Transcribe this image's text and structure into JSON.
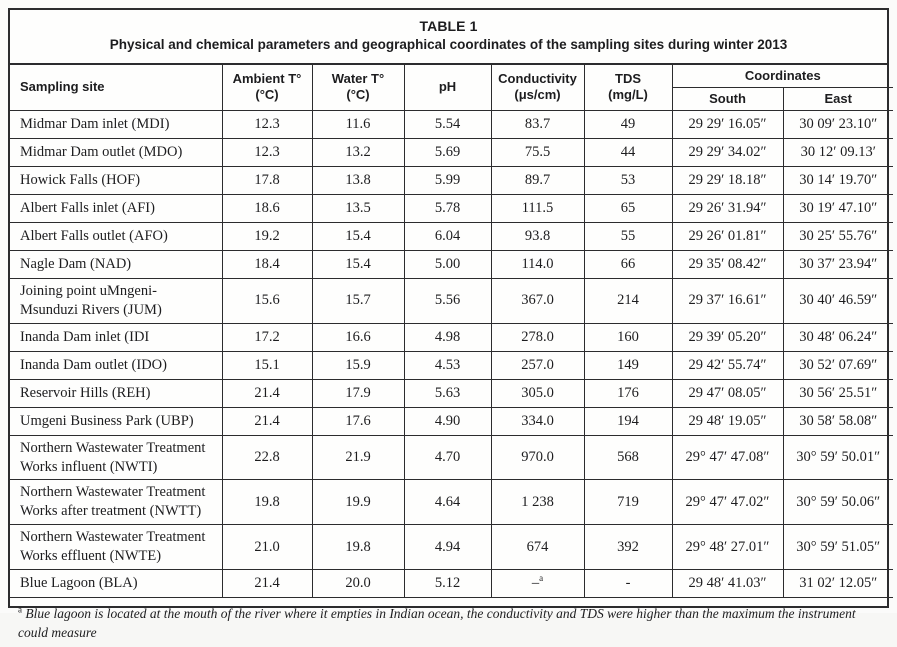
{
  "title": {
    "label": "TABLE 1",
    "subtitle": "Physical and chemical parameters and geographical coordinates of the sampling sites during winter 2013"
  },
  "table": {
    "headers": {
      "site": "Sampling site",
      "ambient": "Ambient T°",
      "ambient_unit": "(°C)",
      "water": "Water T°",
      "water_unit": "(°C)",
      "ph": "pH",
      "conductivity": "Conductivity",
      "conductivity_unit": "(μs/cm)",
      "tds": "TDS",
      "tds_unit": "(mg/L)",
      "coordinates": "Coordinates",
      "south": "South",
      "east": "East"
    },
    "rows": [
      {
        "site": "Midmar Dam inlet (MDI)",
        "ambient": "12.3",
        "water": "11.6",
        "ph": "5.54",
        "conductivity": "83.7",
        "tds": "49",
        "south": "29 29′ 16.05″",
        "east": "30 09′ 23.10″"
      },
      {
        "site": "Midmar Dam outlet (MDO)",
        "ambient": "12.3",
        "water": "13.2",
        "ph": "5.69",
        "conductivity": "75.5",
        "tds": "44",
        "south": "29 29′ 34.02″",
        "east": "30 12′ 09.13′"
      },
      {
        "site": "Howick Falls (HOF)",
        "ambient": "17.8",
        "water": "13.8",
        "ph": "5.99",
        "conductivity": "89.7",
        "tds": "53",
        "south": "29 29′ 18.18″",
        "east": "30 14′ 19.70″"
      },
      {
        "site": "Albert Falls inlet (AFI)",
        "ambient": "18.6",
        "water": "13.5",
        "ph": "5.78",
        "conductivity": "111.5",
        "tds": "65",
        "south": "29 26′ 31.94″",
        "east": "30 19′ 47.10″"
      },
      {
        "site": "Albert Falls outlet (AFO)",
        "ambient": "19.2",
        "water": "15.4",
        "ph": "6.04",
        "conductivity": "93.8",
        "tds": "55",
        "south": "29 26′ 01.81″",
        "east": "30 25′ 55.76″"
      },
      {
        "site": "Nagle Dam (NAD)",
        "ambient": "18.4",
        "water": "15.4",
        "ph": "5.00",
        "conductivity": "114.0",
        "tds": "66",
        "south": "29 35′ 08.42″",
        "east": "30 37′ 23.94″"
      },
      {
        "site": "Joining point uMngeni-Msunduzi Rivers (JUM)",
        "ambient": "15.6",
        "water": "15.7",
        "ph": "5.56",
        "conductivity": "367.0",
        "tds": "214",
        "south": "29 37′ 16.61″",
        "east": "30 40′ 46.59″"
      },
      {
        "site": "Inanda Dam inlet (IDI",
        "ambient": "17.2",
        "water": "16.6",
        "ph": "4.98",
        "conductivity": "278.0",
        "tds": "160",
        "south": "29 39′ 05.20″",
        "east": "30 48′ 06.24″"
      },
      {
        "site": "Inanda Dam outlet (IDO)",
        "ambient": "15.1",
        "water": "15.9",
        "ph": "4.53",
        "conductivity": "257.0",
        "tds": "149",
        "south": "29 42′ 55.74″",
        "east": "30 52′ 07.69″"
      },
      {
        "site": "Reservoir Hills (REH)",
        "ambient": "21.4",
        "water": "17.9",
        "ph": "5.63",
        "conductivity": "305.0",
        "tds": "176",
        "south": "29 47′ 08.05″",
        "east": "30 56′ 25.51″"
      },
      {
        "site": "Umgeni Business Park (UBP)",
        "ambient": "21.4",
        "water": "17.6",
        "ph": "4.90",
        "conductivity": "334.0",
        "tds": "194",
        "south": "29 48′ 19.05″",
        "east": "30 58′ 58.08″"
      },
      {
        "site": "Northern Wastewater Treatment Works influent (NWTI)",
        "ambient": "22.8",
        "water": "21.9",
        "ph": "4.70",
        "conductivity": "970.0",
        "tds": "568",
        "south": "29° 47′ 47.08″",
        "east": "30° 59′ 50.01″"
      },
      {
        "site": "Northern Wastewater Treatment Works after treatment (NWTT)",
        "ambient": "19.8",
        "water": "19.9",
        "ph": "4.64",
        "conductivity": "1 238",
        "tds": "719",
        "south": "29° 47′ 47.02″",
        "east": "30° 59′ 50.06″"
      },
      {
        "site": "Northern Wastewater Treatment Works effluent (NWTE)",
        "ambient": "21.0",
        "water": "19.8",
        "ph": "4.94",
        "conductivity": "674",
        "tds": "392",
        "south": "29° 48′ 27.01″",
        "east": "30° 59′ 51.05″"
      },
      {
        "site": "Blue Lagoon (BLA)",
        "ambient": "21.4",
        "water": "20.0",
        "ph": "5.12",
        "conductivity": "–",
        "conductivity_sup": "a",
        "tds": "-",
        "south": "29 48′ 41.03″",
        "east": "31 02′ 12.05″"
      }
    ]
  },
  "footnote": {
    "marker": "a",
    "text": "Blue lagoon is located at the mouth of the river where it empties in Indian ocean, the conductivity and TDS were higher than the maximum the instrument could measure"
  },
  "colors": {
    "border": "#2c2c2e",
    "text": "#1d1d1f",
    "background": "#fefefd"
  }
}
